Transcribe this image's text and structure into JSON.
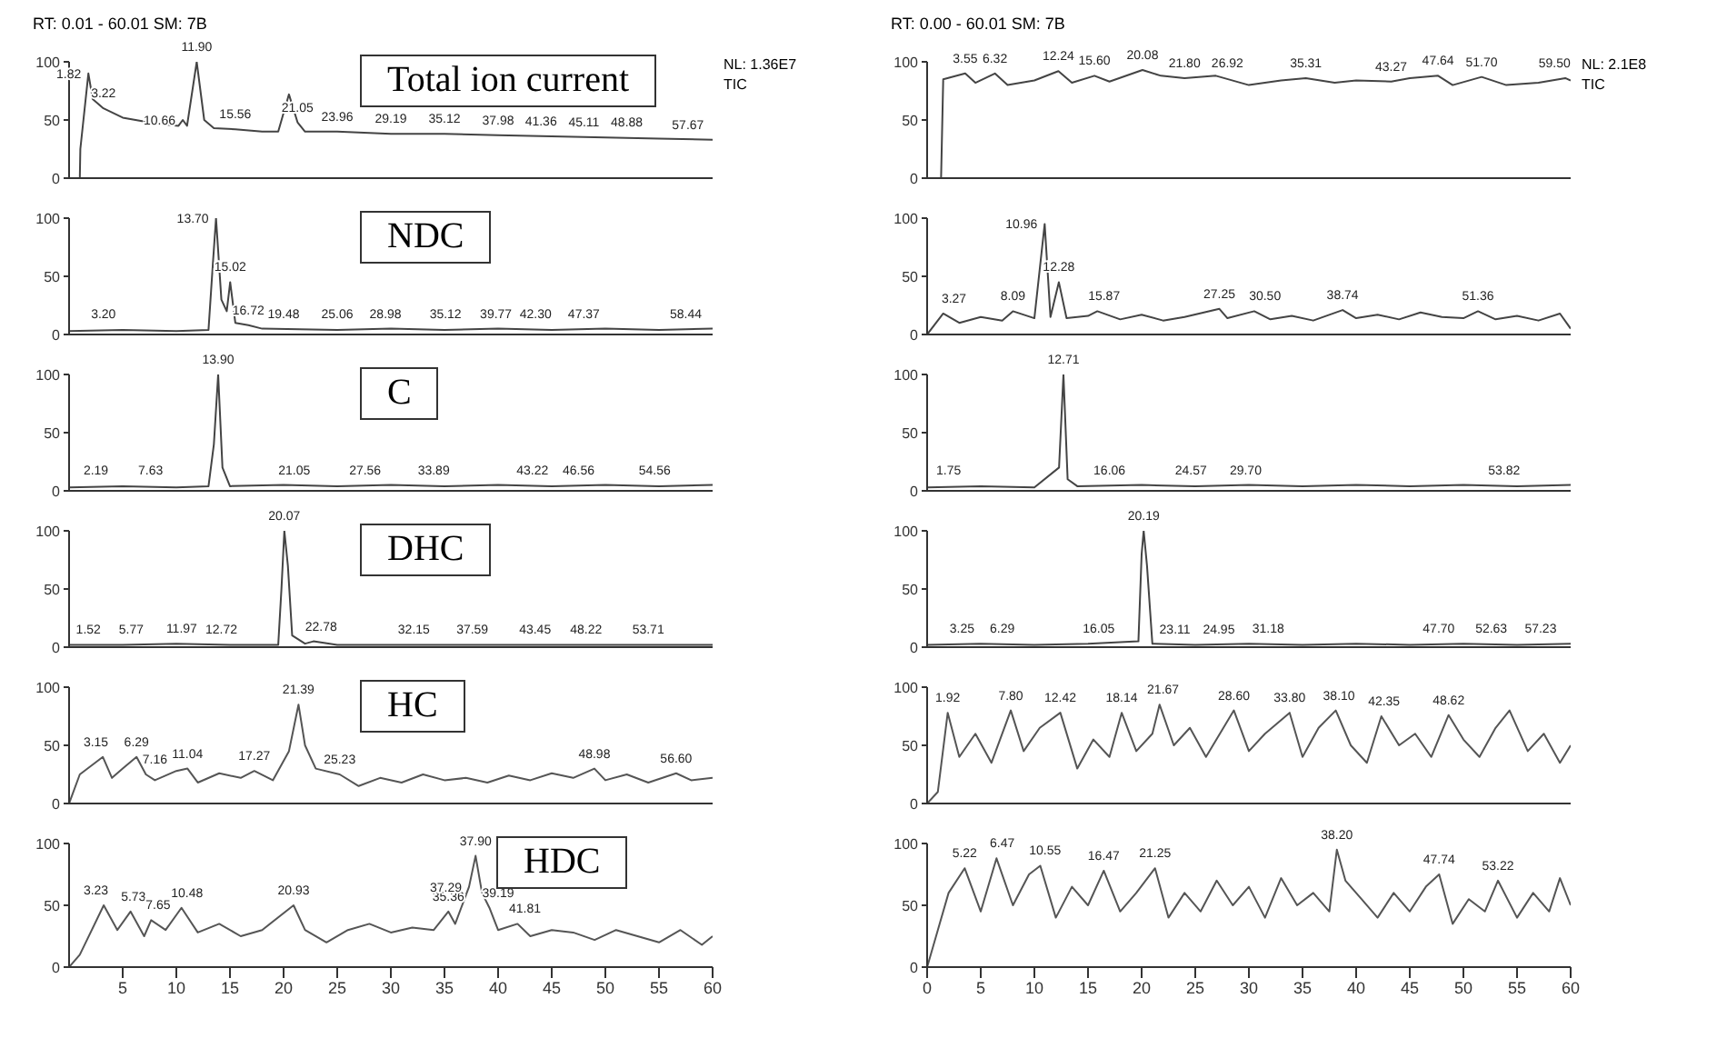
{
  "chart_data": [
    {
      "type": "line",
      "subtitle": "RT: 0.01 - 60.01 SM: 7B",
      "title": "Total ion current",
      "xlim": [
        0,
        60
      ],
      "ylim": [
        0,
        100
      ],
      "yticks": [
        0,
        50,
        100
      ],
      "tick_labels": "y",
      "series": [
        {
          "color": "#444444",
          "x": [
            0,
            1,
            1.05,
            1.8,
            2.2,
            3.2,
            5,
            8,
            10.2,
            10.6,
            11,
            11.9,
            12.6,
            13.5,
            15.5,
            18,
            19.5,
            20.5,
            21.3,
            22,
            25,
            30,
            35,
            40,
            45,
            50,
            55,
            60
          ],
          "values": [
            0,
            0,
            25,
            90,
            68,
            60,
            52,
            47,
            45,
            50,
            45,
            100,
            50,
            43,
            42,
            40,
            40,
            72,
            48,
            40,
            40,
            38,
            38,
            37,
            36,
            35,
            34,
            33
          ]
        }
      ],
      "annotations": [
        "NL: 1.36E7",
        "TIC",
        {
          "text": "1.82",
          "x": 1.8,
          "y": 90
        },
        {
          "text": "3.22",
          "x": 3.2,
          "y": 60
        },
        {
          "text": "10.66",
          "x": 10.6,
          "y": 50
        },
        {
          "text": "11.90",
          "x": 11.9,
          "y": 100
        },
        {
          "text": "15.56",
          "x": 15.5,
          "y": 42
        },
        {
          "text": "21.05",
          "x": 21.3,
          "y": 48
        },
        {
          "text": "23.96",
          "x": 25,
          "y": 40
        },
        {
          "text": "29.19",
          "x": 30,
          "y": 38
        },
        {
          "text": "35.12",
          "x": 35,
          "y": 38
        },
        {
          "text": "37.98",
          "x": 40,
          "y": 37
        },
        {
          "text": "41.36",
          "x": 44,
          "y": 36
        },
        {
          "text": "45.11",
          "x": 48,
          "y": 35
        },
        {
          "text": "48.88",
          "x": 52,
          "y": 35
        },
        {
          "text": "57.67",
          "x": 57.7,
          "y": 33
        }
      ]
    },
    {
      "type": "line",
      "subtitle": "RT: 0.00 - 60.01 SM: 7B",
      "xlim": [
        0,
        60
      ],
      "ylim": [
        0,
        100
      ],
      "yticks": [
        0,
        50,
        100
      ],
      "tick_labels": "y",
      "series": [
        {
          "color": "#444444",
          "x": [
            0,
            1.3,
            1.5,
            3.55,
            4.5,
            6.32,
            7.5,
            10,
            12.24,
            13.5,
            15.6,
            17,
            20.08,
            21.8,
            24,
            26.92,
            30,
            33,
            35.31,
            38,
            40,
            43.27,
            45,
            47.64,
            49,
            51.7,
            54,
            57,
            59.5,
            60
          ],
          "values": [
            0,
            0,
            85,
            90,
            82,
            90,
            80,
            84,
            92,
            82,
            88,
            83,
            93,
            88,
            86,
            88,
            80,
            84,
            86,
            82,
            84,
            83,
            86,
            88,
            80,
            87,
            80,
            82,
            86,
            84
          ]
        }
      ],
      "annotations": [
        "NL: 2.1E8",
        "TIC",
        {
          "text": "3.55",
          "x": 3.55,
          "y": 90
        },
        {
          "text": "6.32",
          "x": 6.32,
          "y": 90
        },
        {
          "text": "12.24",
          "x": 12.24,
          "y": 92
        },
        {
          "text": "15.60",
          "x": 15.6,
          "y": 88
        },
        {
          "text": "20.08",
          "x": 20.08,
          "y": 93
        },
        {
          "text": "21.80",
          "x": 24,
          "y": 86
        },
        {
          "text": "26.92",
          "x": 28,
          "y": 86
        },
        {
          "text": "35.31",
          "x": 35.31,
          "y": 86
        },
        {
          "text": "43.27",
          "x": 43.27,
          "y": 83
        },
        {
          "text": "47.64",
          "x": 47.64,
          "y": 88
        },
        {
          "text": "51.70",
          "x": 51.7,
          "y": 87
        },
        {
          "text": "59.50",
          "x": 58.5,
          "y": 86
        }
      ]
    },
    {
      "type": "line",
      "title": "NDC",
      "xlim": [
        0,
        60
      ],
      "ylim": [
        0,
        100
      ],
      "yticks": [
        0,
        50,
        100
      ],
      "tick_labels": "y",
      "series": [
        {
          "color": "#444444",
          "x": [
            0,
            5,
            10,
            13,
            13.4,
            13.7,
            14.2,
            14.7,
            15.02,
            15.5,
            16.72,
            18,
            25,
            30,
            35,
            40,
            45,
            50,
            55,
            60
          ],
          "values": [
            3,
            4,
            3,
            4,
            60,
            100,
            30,
            20,
            45,
            10,
            8,
            5,
            4,
            5,
            4,
            5,
            4,
            5,
            4,
            5
          ]
        }
      ],
      "annotations": [
        {
          "text": "13.70",
          "x": 13.7,
          "y": 100
        },
        {
          "text": "15.02",
          "x": 15.02,
          "y": 45
        },
        {
          "text": "16.72",
          "x": 16.72,
          "y": 8
        },
        {
          "text": "3.20",
          "x": 3.2,
          "y": 5
        },
        {
          "text": "19.48",
          "x": 20,
          "y": 5
        },
        {
          "text": "25.06",
          "x": 25,
          "y": 5
        },
        {
          "text": "28.98",
          "x": 29.5,
          "y": 5
        },
        {
          "text": "35.12",
          "x": 35.1,
          "y": 5
        },
        {
          "text": "39.77",
          "x": 39.8,
          "y": 5
        },
        {
          "text": "42.30",
          "x": 43.5,
          "y": 5
        },
        {
          "text": "47.37",
          "x": 48,
          "y": 5
        },
        {
          "text": "58.44",
          "x": 57.5,
          "y": 5
        }
      ]
    },
    {
      "type": "line",
      "xlim": [
        0,
        60
      ],
      "ylim": [
        0,
        100
      ],
      "yticks": [
        0,
        50,
        100
      ],
      "tick_labels": "y",
      "series": [
        {
          "color": "#444444",
          "x": [
            0,
            1.5,
            3,
            5,
            7,
            8,
            10,
            10.96,
            11.5,
            12.28,
            13,
            15,
            15.87,
            18,
            20,
            22,
            24,
            27.25,
            28,
            30.5,
            32,
            34,
            36,
            38.74,
            40,
            42,
            44,
            46,
            48,
            50,
            51.36,
            53,
            55,
            57,
            59,
            60
          ],
          "values": [
            0,
            18,
            10,
            15,
            12,
            20,
            14,
            95,
            15,
            45,
            14,
            16,
            20,
            13,
            17,
            12,
            15,
            22,
            14,
            20,
            13,
            16,
            12,
            21,
            14,
            17,
            13,
            19,
            15,
            14,
            20,
            13,
            16,
            12,
            18,
            5
          ]
        }
      ],
      "annotations": [
        {
          "text": "10.96",
          "x": 10.96,
          "y": 95
        },
        {
          "text": "12.28",
          "x": 12.28,
          "y": 45
        },
        {
          "text": "3.27",
          "x": 2.5,
          "y": 18
        },
        {
          "text": "8.09",
          "x": 8,
          "y": 20
        },
        {
          "text": "15.87",
          "x": 16.5,
          "y": 20
        },
        {
          "text": "27.25",
          "x": 27.25,
          "y": 22
        },
        {
          "text": "30.50",
          "x": 31.5,
          "y": 20
        },
        {
          "text": "38.74",
          "x": 38.74,
          "y": 21
        },
        {
          "text": "51.36",
          "x": 51.36,
          "y": 20
        }
      ]
    },
    {
      "type": "line",
      "title": "C",
      "xlim": [
        0,
        60
      ],
      "ylim": [
        0,
        100
      ],
      "yticks": [
        0,
        50,
        100
      ],
      "tick_labels": "y",
      "series": [
        {
          "color": "#444444",
          "x": [
            0,
            5,
            10,
            13,
            13.5,
            13.9,
            14.3,
            15,
            20,
            25,
            30,
            35,
            40,
            45,
            50,
            55,
            60
          ],
          "values": [
            3,
            4,
            3,
            4,
            40,
            100,
            20,
            4,
            5,
            4,
            5,
            4,
            5,
            4,
            5,
            4,
            5
          ]
        }
      ],
      "annotations": [
        {
          "text": "13.90",
          "x": 13.9,
          "y": 100
        },
        {
          "text": "2.19",
          "x": 2.5,
          "y": 5
        },
        {
          "text": "7.63",
          "x": 7.6,
          "y": 5
        },
        {
          "text": "21.05",
          "x": 21,
          "y": 5
        },
        {
          "text": "27.56",
          "x": 27.6,
          "y": 5
        },
        {
          "text": "33.89",
          "x": 34,
          "y": 5
        },
        {
          "text": "43.22",
          "x": 43.2,
          "y": 5
        },
        {
          "text": "46.56",
          "x": 47.5,
          "y": 5
        },
        {
          "text": "54.56",
          "x": 54.6,
          "y": 5
        }
      ]
    },
    {
      "type": "line",
      "xlim": [
        0,
        60
      ],
      "ylim": [
        0,
        100
      ],
      "yticks": [
        0,
        50,
        100
      ],
      "tick_labels": "y",
      "series": [
        {
          "color": "#444444",
          "x": [
            0,
            5,
            10,
            12.3,
            12.71,
            13.1,
            14,
            20,
            25,
            30,
            35,
            40,
            45,
            50,
            55,
            60
          ],
          "values": [
            3,
            4,
            3,
            20,
            100,
            10,
            4,
            5,
            4,
            5,
            4,
            5,
            4,
            5,
            4,
            5
          ]
        }
      ],
      "annotations": [
        {
          "text": "12.71",
          "x": 12.71,
          "y": 100
        },
        {
          "text": "1.75",
          "x": 2,
          "y": 5
        },
        {
          "text": "16.06",
          "x": 17,
          "y": 5
        },
        {
          "text": "24.57",
          "x": 24.6,
          "y": 5
        },
        {
          "text": "29.70",
          "x": 29.7,
          "y": 5
        },
        {
          "text": "53.82",
          "x": 53.8,
          "y": 5
        }
      ]
    },
    {
      "type": "line",
      "title": "DHC",
      "xlim": [
        0,
        60
      ],
      "ylim": [
        0,
        100
      ],
      "yticks": [
        0,
        50,
        100
      ],
      "tick_labels": "y",
      "series": [
        {
          "color": "#444444",
          "x": [
            0,
            5,
            10,
            15,
            19.5,
            19.8,
            20.07,
            20.4,
            20.8,
            22,
            22.78,
            25,
            30,
            35,
            40,
            45,
            50,
            55,
            60
          ],
          "values": [
            2,
            2,
            3,
            2,
            2,
            50,
            100,
            70,
            10,
            3,
            5,
            2,
            2,
            2,
            2,
            2,
            2,
            2,
            2
          ]
        }
      ],
      "annotations": [
        {
          "text": "20.07",
          "x": 20.07,
          "y": 100
        },
        {
          "text": "1.52",
          "x": 1.8,
          "y": 2
        },
        {
          "text": "5.77",
          "x": 5.8,
          "y": 2
        },
        {
          "text": "11.97",
          "x": 10.5,
          "y": 3
        },
        {
          "text": "12.72",
          "x": 14.2,
          "y": 2
        },
        {
          "text": "22.78",
          "x": 23.5,
          "y": 5
        },
        {
          "text": "32.15",
          "x": 32.15,
          "y": 2
        },
        {
          "text": "37.59",
          "x": 37.6,
          "y": 2
        },
        {
          "text": "43.45",
          "x": 43.45,
          "y": 2
        },
        {
          "text": "48.22",
          "x": 48.2,
          "y": 2
        },
        {
          "text": "53.71",
          "x": 54,
          "y": 2
        }
      ]
    },
    {
      "type": "line",
      "xlim": [
        0,
        60
      ],
      "ylim": [
        0,
        100
      ],
      "yticks": [
        0,
        50,
        100
      ],
      "tick_labels": "y",
      "series": [
        {
          "color": "#444444",
          "x": [
            0,
            5,
            10,
            15,
            19.7,
            20,
            20.19,
            20.5,
            21,
            25,
            30,
            35,
            40,
            45,
            50,
            55,
            60
          ],
          "values": [
            2,
            3,
            2,
            3,
            5,
            80,
            100,
            70,
            3,
            2,
            3,
            2,
            3,
            2,
            3,
            2,
            3
          ]
        }
      ],
      "annotations": [
        {
          "text": "20.19",
          "x": 20.19,
          "y": 100
        },
        {
          "text": "3.25",
          "x": 3.25,
          "y": 3
        },
        {
          "text": "6.29",
          "x": 7,
          "y": 3
        },
        {
          "text": "16.05",
          "x": 16,
          "y": 3
        },
        {
          "text": "23.11",
          "x": 23.1,
          "y": 2
        },
        {
          "text": "24.95",
          "x": 27.2,
          "y": 2
        },
        {
          "text": "31.18",
          "x": 31.8,
          "y": 3
        },
        {
          "text": "47.70",
          "x": 47.7,
          "y": 3
        },
        {
          "text": "52.63",
          "x": 52.6,
          "y": 3
        },
        {
          "text": "57.23",
          "x": 57.2,
          "y": 3
        }
      ]
    },
    {
      "type": "line",
      "title": "HC",
      "xlim": [
        0,
        60
      ],
      "ylim": [
        0,
        100
      ],
      "yticks": [
        0,
        50,
        100
      ],
      "tick_labels": "y",
      "series": [
        {
          "color": "#555555",
          "x": [
            0,
            1,
            3.15,
            4,
            5,
            6.29,
            7.16,
            8,
            10,
            11.04,
            12,
            14,
            16,
            17.27,
            19,
            20.5,
            21.39,
            22,
            23,
            25.23,
            27,
            29,
            31,
            33,
            35,
            37,
            39,
            41,
            43,
            45,
            47,
            48.98,
            50,
            52,
            54,
            56.6,
            58,
            60
          ],
          "values": [
            0,
            25,
            40,
            22,
            30,
            40,
            25,
            20,
            28,
            30,
            18,
            26,
            22,
            28,
            20,
            45,
            85,
            50,
            30,
            25,
            15,
            22,
            18,
            25,
            20,
            22,
            18,
            24,
            20,
            26,
            22,
            30,
            20,
            25,
            18,
            26,
            20,
            22
          ]
        }
      ],
      "annotations": [
        {
          "text": "3.15",
          "x": 2.5,
          "y": 40
        },
        {
          "text": "6.29",
          "x": 6.29,
          "y": 40
        },
        {
          "text": "7.16",
          "x": 8,
          "y": 25
        },
        {
          "text": "11.04",
          "x": 11.04,
          "y": 30
        },
        {
          "text": "17.27",
          "x": 17.27,
          "y": 28
        },
        {
          "text": "21.39",
          "x": 21.39,
          "y": 85
        },
        {
          "text": "25.23",
          "x": 25.23,
          "y": 25
        },
        {
          "text": "48.98",
          "x": 48.98,
          "y": 30
        },
        {
          "text": "56.60",
          "x": 56.6,
          "y": 26
        }
      ]
    },
    {
      "type": "line",
      "xlim": [
        0,
        60
      ],
      "ylim": [
        0,
        100
      ],
      "yticks": [
        0,
        50,
        100
      ],
      "tick_labels": "y",
      "series": [
        {
          "color": "#555555",
          "x": [
            0,
            1,
            1.92,
            3,
            4.5,
            6,
            7.8,
            9,
            10.5,
            12.42,
            14,
            15.5,
            17,
            18.14,
            19.5,
            21,
            21.67,
            23,
            24.5,
            26,
            28.6,
            30,
            31.5,
            33.8,
            35,
            36.5,
            38.1,
            39.5,
            41,
            42.35,
            44,
            45.5,
            47,
            48.62,
            50,
            51.5,
            53,
            54.3,
            56,
            57.5,
            59,
            60
          ],
          "values": [
            0,
            10,
            78,
            40,
            60,
            35,
            80,
            45,
            65,
            78,
            30,
            55,
            40,
            78,
            45,
            60,
            85,
            50,
            65,
            40,
            80,
            45,
            60,
            78,
            40,
            65,
            80,
            50,
            35,
            75,
            50,
            60,
            40,
            76,
            55,
            40,
            65,
            80,
            45,
            60,
            35,
            50
          ]
        }
      ],
      "annotations": [
        {
          "text": "1.92",
          "x": 1.92,
          "y": 78
        },
        {
          "text": "7.80",
          "x": 7.8,
          "y": 80
        },
        {
          "text": "12.42",
          "x": 12.42,
          "y": 78
        },
        {
          "text": "18.14",
          "x": 18.14,
          "y": 78
        },
        {
          "text": "21.67",
          "x": 22,
          "y": 85
        },
        {
          "text": "28.60",
          "x": 28.6,
          "y": 80
        },
        {
          "text": "33.80",
          "x": 33.8,
          "y": 78
        },
        {
          "text": "38.10",
          "x": 38.4,
          "y": 80
        },
        {
          "text": "42.35",
          "x": 42.6,
          "y": 75
        },
        {
          "text": "48.62",
          "x": 48.62,
          "y": 76
        }
      ]
    },
    {
      "type": "line",
      "title": "HDC",
      "xlim": [
        0,
        60
      ],
      "ylim": [
        0,
        100
      ],
      "xticks": [
        5,
        10,
        15,
        20,
        25,
        30,
        35,
        40,
        45,
        50,
        55,
        60
      ],
      "yticks": [
        0,
        50,
        100
      ],
      "series": [
        {
          "color": "#555555",
          "x": [
            0,
            1,
            3.23,
            4.5,
            5.73,
            7,
            7.65,
            9,
            10.48,
            12,
            14,
            16,
            18,
            20.93,
            22,
            24,
            26,
            28,
            30,
            32,
            34,
            35.36,
            36,
            37.29,
            37.9,
            38.5,
            39.19,
            40,
            41.81,
            43,
            45,
            47,
            49,
            51,
            53,
            55,
            57,
            59,
            60
          ],
          "values": [
            0,
            10,
            50,
            30,
            45,
            25,
            38,
            30,
            48,
            28,
            35,
            25,
            30,
            50,
            30,
            20,
            30,
            35,
            28,
            32,
            30,
            45,
            35,
            65,
            90,
            60,
            48,
            30,
            35,
            25,
            30,
            28,
            22,
            30,
            25,
            20,
            30,
            18,
            25
          ]
        }
      ],
      "annotations": [
        {
          "text": "3.23",
          "x": 2.5,
          "y": 50
        },
        {
          "text": "5.73",
          "x": 6,
          "y": 45
        },
        {
          "text": "7.65",
          "x": 8.3,
          "y": 38
        },
        {
          "text": "10.48",
          "x": 11,
          "y": 48
        },
        {
          "text": "20.93",
          "x": 20.93,
          "y": 50
        },
        {
          "text": "35.36",
          "x": 35.36,
          "y": 45
        },
        {
          "text": "37.29",
          "x": 37.29,
          "y": 65
        },
        {
          "text": "37.90",
          "x": 37.9,
          "y": 90
        },
        {
          "text": "39.19",
          "x": 40,
          "y": 48
        },
        {
          "text": "41.81",
          "x": 42.5,
          "y": 35
        }
      ]
    },
    {
      "type": "line",
      "xlim": [
        0,
        60
      ],
      "ylim": [
        0,
        100
      ],
      "xticks": [
        0,
        5,
        10,
        15,
        20,
        25,
        30,
        35,
        40,
        45,
        50,
        55,
        60
      ],
      "yticks": [
        0,
        50,
        100
      ],
      "series": [
        {
          "color": "#555555",
          "x": [
            0,
            1,
            2,
            3.5,
            5,
            6.47,
            8,
            9.5,
            10.55,
            12,
            13.5,
            15,
            16.47,
            18,
            19.5,
            21.25,
            22.5,
            24,
            25.5,
            27,
            28.5,
            30,
            31.5,
            33,
            34.5,
            36,
            37.5,
            38.2,
            39,
            40.5,
            42,
            43.5,
            45,
            46.5,
            47.74,
            49,
            50.5,
            52,
            53.22,
            55,
            56.5,
            58,
            59,
            60
          ],
          "values": [
            0,
            30,
            60,
            80,
            45,
            88,
            50,
            75,
            82,
            40,
            65,
            50,
            78,
            45,
            60,
            80,
            40,
            60,
            45,
            70,
            50,
            65,
            40,
            72,
            50,
            60,
            45,
            95,
            70,
            55,
            40,
            60,
            45,
            65,
            75,
            35,
            55,
            45,
            70,
            40,
            60,
            45,
            72,
            50
          ]
        }
      ],
      "annotations": [
        {
          "text": "5.22",
          "x": 3.5,
          "y": 80
        },
        {
          "text": "6.47",
          "x": 7,
          "y": 88
        },
        {
          "text": "10.55",
          "x": 11,
          "y": 82
        },
        {
          "text": "16.47",
          "x": 16.47,
          "y": 78
        },
        {
          "text": "21.25",
          "x": 21.25,
          "y": 80
        },
        {
          "text": "38.20",
          "x": 38.2,
          "y": 95
        },
        {
          "text": "47.74",
          "x": 47.74,
          "y": 75
        },
        {
          "text": "53.22",
          "x": 53.22,
          "y": 70
        }
      ]
    }
  ]
}
